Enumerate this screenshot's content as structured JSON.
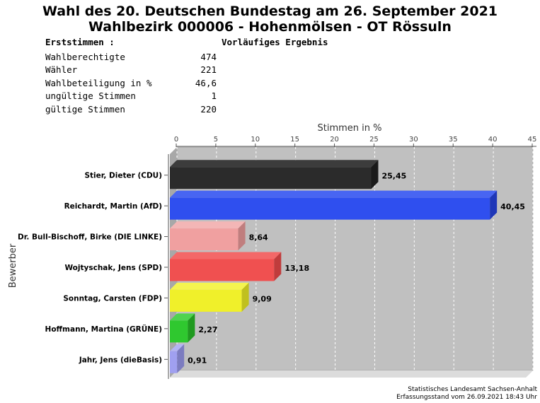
{
  "header": {
    "title_line1": "Wahl des 20. Deutschen Bundestag am 26. September 2021",
    "title_line2": "Wahlbezirk 000006 - Hohenmölsen - OT Rössuln",
    "section_label": "Erststimmen  :",
    "status": "Vorläufiges Ergebnis"
  },
  "stats": [
    {
      "label": "Wahlberechtigte",
      "value": "474"
    },
    {
      "label": "Wähler",
      "value": "221"
    },
    {
      "label": "Wahlbeteiligung in %",
      "value": "46,6"
    },
    {
      "label": "ungültige Stimmen",
      "value": "1"
    },
    {
      "label": "gültige Stimmen",
      "value": "220"
    }
  ],
  "chart_data": {
    "type": "bar",
    "orientation": "horizontal",
    "xlabel": "Stimmen in %",
    "ylabel": "Bewerber",
    "xlim": [
      0,
      45
    ],
    "xticks": [
      0,
      5,
      10,
      15,
      20,
      25,
      30,
      35,
      40,
      45
    ],
    "grid": true,
    "categories": [
      "Stier, Dieter (CDU)",
      "Reichardt, Martin (AfD)",
      "Dr. Bull-Bischoff, Birke (DIE LINKE)",
      "Wojtyschak, Jens (SPD)",
      "Sonntag, Carsten (FDP)",
      "Hoffmann, Martina (GRÜNE)",
      "Jahr, Jens (dieBasis)"
    ],
    "values": [
      25.45,
      40.45,
      8.64,
      13.18,
      9.09,
      2.27,
      0.91
    ],
    "value_labels": [
      "25,45",
      "40,45",
      "8,64",
      "13,18",
      "9,09",
      "2,27",
      "0,91"
    ],
    "colors": [
      "#2b2b2b",
      "#2f4fef",
      "#f0a0a0",
      "#f05050",
      "#f0f02a",
      "#2fc82f",
      "#a0a0f0"
    ],
    "side_colors": [
      "#1a1a1a",
      "#1f37b8",
      "#c07e7e",
      "#c03c3c",
      "#c0c01e",
      "#209a20",
      "#7c7cc0"
    ],
    "top_colors": [
      "#3c3c3c",
      "#4865f2",
      "#f3b6b6",
      "#f36868",
      "#f4f450",
      "#4fd34f",
      "#b4b4f3"
    ],
    "plot_background": "#c0c0c0"
  },
  "footer": {
    "line1": "Statistisches Landesamt Sachsen-Anhalt",
    "line2": "Erfassungsstand vom 26.09.2021 18:43 Uhr"
  }
}
